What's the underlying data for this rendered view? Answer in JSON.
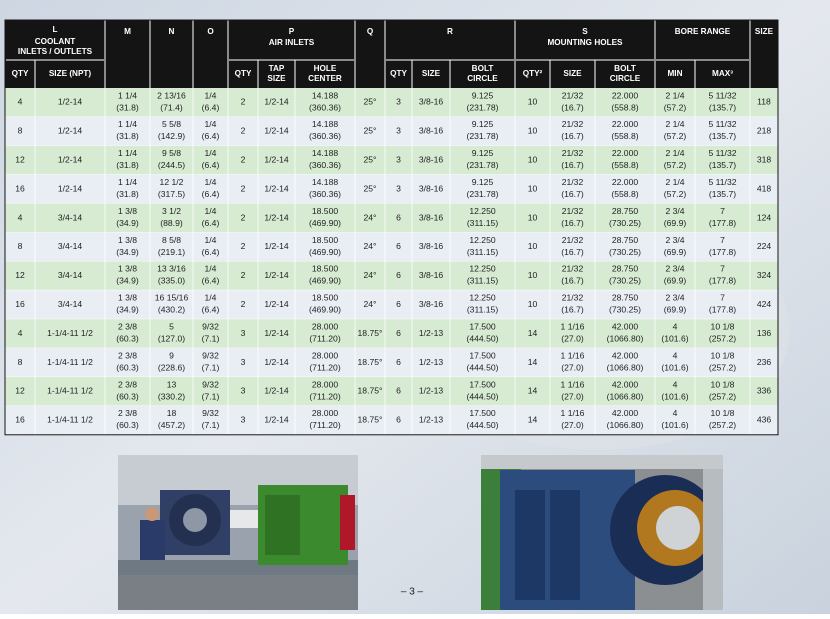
{
  "table": {
    "header": {
      "l": [
        "L",
        "COOLANT",
        "INLETS / OUTLETS"
      ],
      "m": "M",
      "n": "N",
      "o": "O",
      "p": [
        "P",
        "AIR INLETS"
      ],
      "q": "Q",
      "r": "R",
      "s": [
        "S",
        "MOUNTING HOLES"
      ],
      "bore": "BORE RANGE",
      "size": "SIZE",
      "sub": [
        "QTY",
        "SIZE (NPT)",
        "QTY",
        [
          "TAP",
          "SIZE"
        ],
        [
          "HOLE",
          "CENTER"
        ],
        "QTY",
        "SIZE",
        [
          "BOLT",
          "CIRCLE"
        ],
        "QTY²",
        "SIZE",
        [
          "BOLT",
          "CIRCLE"
        ],
        "MIN",
        "MAX³"
      ]
    },
    "rows": [
      [
        "4",
        "1/2-14",
        [
          "1 1/4",
          "(31.8)"
        ],
        [
          "2 13/16",
          "(71.4)"
        ],
        [
          "1/4",
          "(6.4)"
        ],
        "2",
        "1/2-14",
        [
          "14.188",
          "(360.36)"
        ],
        "25°",
        "3",
        "3/8-16",
        [
          "9.125",
          "(231.78)"
        ],
        "10",
        [
          "21/32",
          "(16.7)"
        ],
        [
          "22.000",
          "(558.8)"
        ],
        [
          "2 1/4",
          "(57.2)"
        ],
        [
          "5 11/32",
          "(135.7)"
        ],
        "118"
      ],
      [
        "8",
        "1/2-14",
        [
          "1 1/4",
          "(31.8)"
        ],
        [
          "5 5/8",
          "(142.9)"
        ],
        [
          "1/4",
          "(6.4)"
        ],
        "2",
        "1/2-14",
        [
          "14.188",
          "(360.36)"
        ],
        "25°",
        "3",
        "3/8-16",
        [
          "9.125",
          "(231.78)"
        ],
        "10",
        [
          "21/32",
          "(16.7)"
        ],
        [
          "22.000",
          "(558.8)"
        ],
        [
          "2 1/4",
          "(57.2)"
        ],
        [
          "5 11/32",
          "(135.7)"
        ],
        "218"
      ],
      [
        "12",
        "1/2-14",
        [
          "1 1/4",
          "(31.8)"
        ],
        [
          "9 5/8",
          "(244.5)"
        ],
        [
          "1/4",
          "(6.4)"
        ],
        "2",
        "1/2-14",
        [
          "14.188",
          "(360.36)"
        ],
        "25°",
        "3",
        "3/8-16",
        [
          "9.125",
          "(231.78)"
        ],
        "10",
        [
          "21/32",
          "(16.7)"
        ],
        [
          "22.000",
          "(558.8)"
        ],
        [
          "2 1/4",
          "(57.2)"
        ],
        [
          "5 11/32",
          "(135.7)"
        ],
        "318"
      ],
      [
        "16",
        "1/2-14",
        [
          "1 1/4",
          "(31.8)"
        ],
        [
          "12 1/2",
          "(317.5)"
        ],
        [
          "1/4",
          "(6.4)"
        ],
        "2",
        "1/2-14",
        [
          "14.188",
          "(360.36)"
        ],
        "25°",
        "3",
        "3/8-16",
        [
          "9.125",
          "(231.78)"
        ],
        "10",
        [
          "21/32",
          "(16.7)"
        ],
        [
          "22.000",
          "(558.8)"
        ],
        [
          "2 1/4",
          "(57.2)"
        ],
        [
          "5 11/32",
          "(135.7)"
        ],
        "418"
      ],
      [
        "4",
        "3/4-14",
        [
          "1 3/8",
          "(34.9)"
        ],
        [
          "3 1/2",
          "(88.9)"
        ],
        [
          "1/4",
          "(6.4)"
        ],
        "2",
        "1/2-14",
        [
          "18.500",
          "(469.90)"
        ],
        "24°",
        "6",
        "3/8-16",
        [
          "12.250",
          "(311.15)"
        ],
        "10",
        [
          "21/32",
          "(16.7)"
        ],
        [
          "28.750",
          "(730.25)"
        ],
        [
          "2 3/4",
          "(69.9)"
        ],
        [
          "7",
          "(177.8)"
        ],
        "124"
      ],
      [
        "8",
        "3/4-14",
        [
          "1 3/8",
          "(34.9)"
        ],
        [
          "8 5/8",
          "(219.1)"
        ],
        [
          "1/4",
          "(6.4)"
        ],
        "2",
        "1/2-14",
        [
          "18.500",
          "(469.90)"
        ],
        "24°",
        "6",
        "3/8-16",
        [
          "12.250",
          "(311.15)"
        ],
        "10",
        [
          "21/32",
          "(16.7)"
        ],
        [
          "28.750",
          "(730.25)"
        ],
        [
          "2 3/4",
          "(69.9)"
        ],
        [
          "7",
          "(177.8)"
        ],
        "224"
      ],
      [
        "12",
        "3/4-14",
        [
          "1 3/8",
          "(34.9)"
        ],
        [
          "13 3/16",
          "(335.0)"
        ],
        [
          "1/4",
          "(6.4)"
        ],
        "2",
        "1/2-14",
        [
          "18.500",
          "(469.90)"
        ],
        "24°",
        "6",
        "3/8-16",
        [
          "12.250",
          "(311.15)"
        ],
        "10",
        [
          "21/32",
          "(16.7)"
        ],
        [
          "28.750",
          "(730.25)"
        ],
        [
          "2 3/4",
          "(69.9)"
        ],
        [
          "7",
          "(177.8)"
        ],
        "324"
      ],
      [
        "16",
        "3/4-14",
        [
          "1 3/8",
          "(34.9)"
        ],
        [
          "16 15/16",
          "(430.2)"
        ],
        [
          "1/4",
          "(6.4)"
        ],
        "2",
        "1/2-14",
        [
          "18.500",
          "(469.90)"
        ],
        "24°",
        "6",
        "3/8-16",
        [
          "12.250",
          "(311.15)"
        ],
        "10",
        [
          "21/32",
          "(16.7)"
        ],
        [
          "28.750",
          "(730.25)"
        ],
        [
          "2 3/4",
          "(69.9)"
        ],
        [
          "7",
          "(177.8)"
        ],
        "424"
      ],
      [
        "4",
        "1-1/4-11 1/2",
        [
          "2 3/8",
          "(60.3)"
        ],
        [
          "5",
          "(127.0)"
        ],
        [
          "9/32",
          "(7.1)"
        ],
        "3",
        "1/2-14",
        [
          "28.000",
          "(711.20)"
        ],
        "18.75°",
        "6",
        "1/2-13",
        [
          "17.500",
          "(444.50)"
        ],
        "14",
        [
          "1 1/16",
          "(27.0)"
        ],
        [
          "42.000",
          "(1066.80)"
        ],
        [
          "4",
          "(101.6)"
        ],
        [
          "10 1/8",
          "(257.2)"
        ],
        "136"
      ],
      [
        "8",
        "1-1/4-11 1/2",
        [
          "2 3/8",
          "(60.3)"
        ],
        [
          "9",
          "(228.6)"
        ],
        [
          "9/32",
          "(7.1)"
        ],
        "3",
        "1/2-14",
        [
          "28.000",
          "(711.20)"
        ],
        "18.75°",
        "6",
        "1/2-13",
        [
          "17.500",
          "(444.50)"
        ],
        "14",
        [
          "1 1/16",
          "(27.0)"
        ],
        [
          "42.000",
          "(1066.80)"
        ],
        [
          "4",
          "(101.6)"
        ],
        [
          "10 1/8",
          "(257.2)"
        ],
        "236"
      ],
      [
        "12",
        "1-1/4-11 1/2",
        [
          "2 3/8",
          "(60.3)"
        ],
        [
          "13",
          "(330.2)"
        ],
        [
          "9/32",
          "(7.1)"
        ],
        "3",
        "1/2-14",
        [
          "28.000",
          "(711.20)"
        ],
        "18.75°",
        "6",
        "1/2-13",
        [
          "17.500",
          "(444.50)"
        ],
        "14",
        [
          "1 1/16",
          "(27.0)"
        ],
        [
          "42.000",
          "(1066.80)"
        ],
        [
          "4",
          "(101.6)"
        ],
        [
          "10 1/8",
          "(257.2)"
        ],
        "336"
      ],
      [
        "16",
        "1-1/4-11 1/2",
        [
          "2 3/8",
          "(60.3)"
        ],
        [
          "18",
          "(457.2)"
        ],
        [
          "9/32",
          "(7.1)"
        ],
        "3",
        "1/2-14",
        [
          "28.000",
          "(711.20)"
        ],
        "18.75°",
        "6",
        "1/2-13",
        [
          "17.500",
          "(444.50)"
        ],
        "14",
        [
          "1 1/16",
          "(27.0)"
        ],
        [
          "42.000",
          "(1066.80)"
        ],
        [
          "4",
          "(101.6)"
        ],
        [
          "10 1/8",
          "(257.2)"
        ],
        "436"
      ]
    ]
  },
  "footer": {
    "page_number": "– 3 –"
  }
}
